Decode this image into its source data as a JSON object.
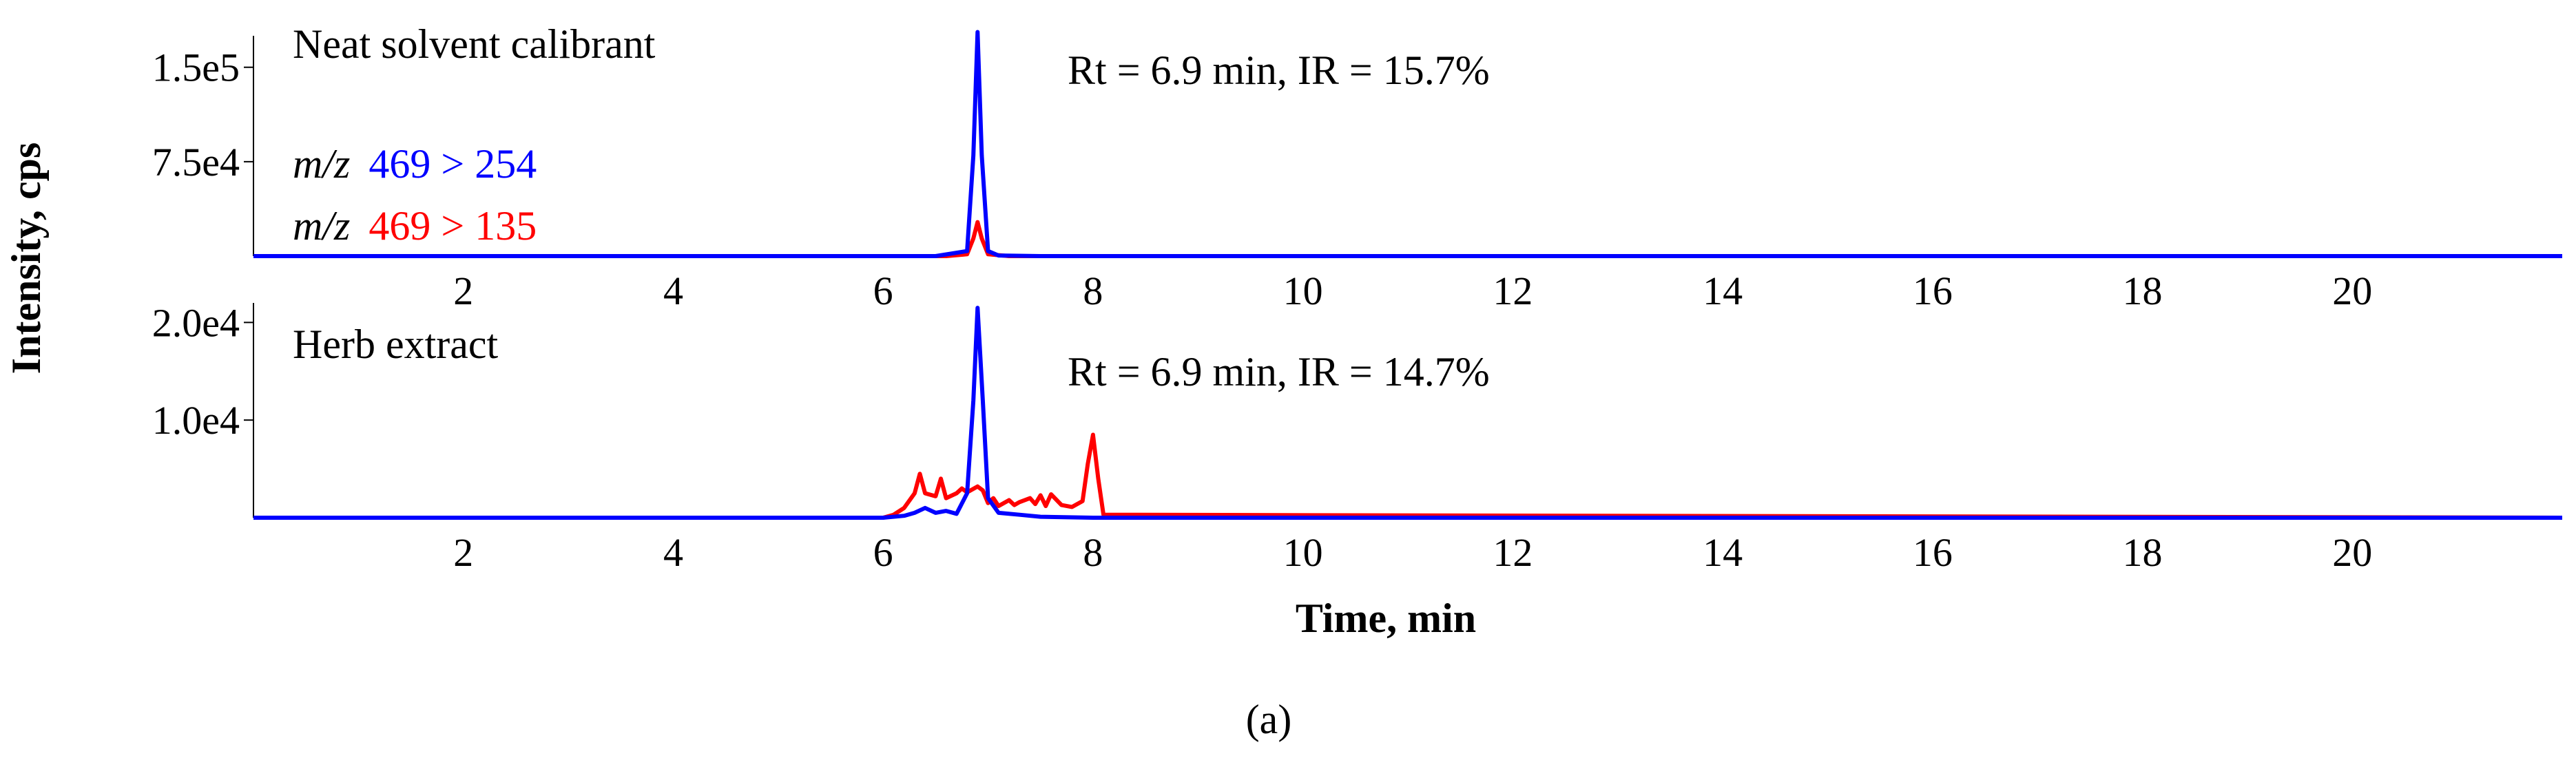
{
  "figure": {
    "ylabel": "Intensity, cps",
    "xlabel": "Time, min",
    "panel_label": "(a)"
  },
  "colors": {
    "blue": "#0000ff",
    "red": "#ff0000",
    "axis": "#000000"
  },
  "legend": {
    "mz_prefix": "m/z",
    "blue_transition": "469 > 254",
    "red_transition": "469 > 135"
  },
  "chart_data": [
    {
      "type": "line",
      "title": "Neat solvent calibrant",
      "annotation": "Rt = 6.9 min, IR = 15.7%",
      "xlim": [
        0,
        22
      ],
      "ylim": [
        0,
        175000
      ],
      "xticks": [
        2,
        4,
        6,
        8,
        10,
        12,
        14,
        16,
        18,
        20
      ],
      "xtick_labels": [
        "2",
        "4",
        "6",
        "8",
        "10",
        "12",
        "14",
        "16",
        "18",
        "20"
      ],
      "yticks": [
        75000,
        150000
      ],
      "ytick_labels": [
        "7.5e4",
        "1.5e5"
      ],
      "series": [
        {
          "name": "m/z 469 > 254",
          "color": "#0000ff",
          "x": [
            0,
            6.5,
            6.8,
            6.86,
            6.9,
            6.94,
            7.0,
            7.1,
            7.5,
            22
          ],
          "y": [
            0,
            0,
            4000,
            80000,
            178000,
            80000,
            4000,
            500,
            0,
            0
          ]
        },
        {
          "name": "m/z 469 > 135",
          "color": "#ff0000",
          "x": [
            0,
            6.6,
            6.8,
            6.86,
            6.9,
            6.94,
            7.0,
            7.2,
            22
          ],
          "y": [
            0,
            0,
            1500,
            14000,
            27000,
            14000,
            1500,
            0,
            0
          ]
        }
      ]
    },
    {
      "type": "line",
      "title": "Herb extract",
      "annotation": "Rt = 6.9 min, IR = 14.7%",
      "xlim": [
        0,
        22
      ],
      "ylim": [
        0,
        22000
      ],
      "xticks": [
        2,
        4,
        6,
        8,
        10,
        12,
        14,
        16,
        18,
        20
      ],
      "xtick_labels": [
        "2",
        "4",
        "6",
        "8",
        "10",
        "12",
        "14",
        "16",
        "18",
        "20"
      ],
      "yticks": [
        10000,
        20000
      ],
      "ytick_labels": [
        "1.0e4",
        "2.0e4"
      ],
      "series": [
        {
          "name": "m/z 469 > 254",
          "color": "#0000ff",
          "x": [
            0,
            6.0,
            6.2,
            6.3,
            6.4,
            6.5,
            6.6,
            6.7,
            6.8,
            6.86,
            6.9,
            6.95,
            7.0,
            7.1,
            7.3,
            7.5,
            8.0,
            22
          ],
          "y": [
            0,
            0,
            200,
            500,
            1000,
            500,
            700,
            400,
            2500,
            12000,
            21500,
            12000,
            2000,
            500,
            300,
            100,
            0,
            0
          ]
        },
        {
          "name": "m/z 469 > 135",
          "color": "#ff0000",
          "x": [
            0,
            6.0,
            6.1,
            6.2,
            6.3,
            6.35,
            6.4,
            6.5,
            6.55,
            6.6,
            6.7,
            6.75,
            6.8,
            6.9,
            6.95,
            7.0,
            7.05,
            7.1,
            7.2,
            7.25,
            7.3,
            7.4,
            7.45,
            7.5,
            7.55,
            7.6,
            7.7,
            7.8,
            7.9,
            7.95,
            8.0,
            8.05,
            8.1,
            22
          ],
          "y": [
            0,
            0,
            300,
            1000,
            2500,
            4500,
            2500,
            2200,
            4000,
            2000,
            2500,
            3000,
            2600,
            3200,
            2800,
            1500,
            2000,
            1200,
            1800,
            1300,
            1600,
            2000,
            1400,
            2300,
            1200,
            2400,
            1300,
            1100,
            1700,
            5500,
            8500,
            4000,
            300,
            0
          ]
        }
      ]
    }
  ]
}
